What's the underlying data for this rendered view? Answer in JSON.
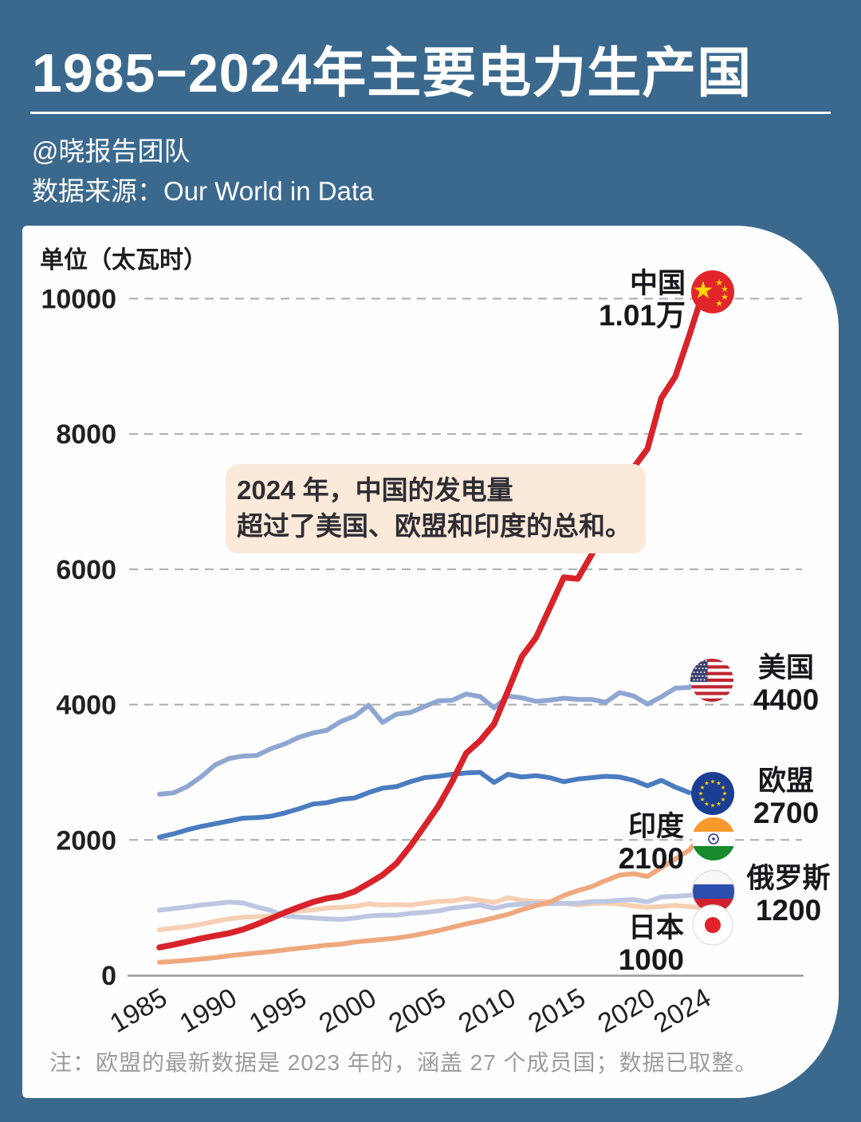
{
  "page": {
    "background": "#3b698e",
    "card_background": "#fefefe",
    "accent_red": "#d8232a"
  },
  "header": {
    "title": "1985−2024年主要电力生产国",
    "byline": "@晓报告团队",
    "source": "数据来源：Our World in Data"
  },
  "chart": {
    "unit_label": "单位（太瓦时）",
    "annotation": {
      "line1": "2024 年，中国的发电量",
      "line2": "超过了美国、欧盟和印度的总和。"
    },
    "note": "注：欧盟的最新数据是 2023 年的，涵盖 27 个成员国；数据已取整。"
  },
  "chart_data": {
    "type": "line",
    "title": "1985−2024年主要电力生产国",
    "unit": "太瓦时 (TWh)",
    "x_start": 1985,
    "x_end": 2024,
    "xticks": [
      1985,
      1990,
      1995,
      2000,
      2005,
      2010,
      2015,
      2020,
      2024
    ],
    "yticks": [
      0,
      2000,
      4000,
      6000,
      8000,
      10000
    ],
    "ylim": [
      0,
      10500
    ],
    "grid": "horizontal-dashed",
    "legend_position": "end-of-line-flags",
    "series": [
      {
        "name": "日本",
        "flag": "japan-flag-icon",
        "color": "#f6cfb4",
        "width": 6,
        "end_year": 2024,
        "end_label": "1000",
        "values": [
          672,
          696,
          719,
          753,
          798,
          835,
          857,
          866,
          876,
          922,
          950,
          965,
          995,
          1003,
          1018,
          1055,
          1038,
          1044,
          1038,
          1067,
          1092,
          1100,
          1136,
          1108,
          1075,
          1148,
          1107,
          1093,
          1090,
          1061,
          1041,
          1058,
          1068,
          1051,
          1025,
          1004,
          1017,
          1034,
          1013,
          1000
        ]
      },
      {
        "name": "俄罗斯",
        "flag": "russia-flag-icon",
        "color": "#bdc7e3",
        "width": 6,
        "end_year": 2024,
        "end_label": "1200",
        "values": [
          962,
          985,
          1010,
          1040,
          1060,
          1082,
          1068,
          1008,
          957,
          876,
          860,
          847,
          834,
          826,
          845,
          876,
          889,
          889,
          914,
          930,
          951,
          993,
          1013,
          1038,
          990,
          1036,
          1052,
          1064,
          1057,
          1062,
          1063,
          1089,
          1091,
          1109,
          1118,
          1085,
          1157,
          1167,
          1180,
          1200
        ]
      },
      {
        "name": "印度",
        "flag": "india-flag-icon",
        "color": "#efa87d",
        "width": 6,
        "end_year": 2024,
        "end_label": "2100",
        "values": [
          192,
          205,
          220,
          240,
          260,
          289,
          310,
          330,
          350,
          375,
          400,
          420,
          445,
          460,
          490,
          512,
          530,
          550,
          580,
          620,
          660,
          710,
          760,
          800,
          850,
          900,
          970,
          1030,
          1080,
          1180,
          1250,
          1310,
          1400,
          1480,
          1500,
          1460,
          1590,
          1720,
          1850,
          2100
        ]
      },
      {
        "name": "欧盟",
        "flag": "eu-flag-icon",
        "color": "#4b7cc0",
        "width": 6,
        "end_year": 2023,
        "end_label": "2700",
        "values": [
          2041,
          2090,
          2150,
          2200,
          2240,
          2280,
          2322,
          2330,
          2350,
          2400,
          2460,
          2530,
          2550,
          2600,
          2620,
          2700,
          2765,
          2788,
          2862,
          2920,
          2940,
          2970,
          2990,
          3000,
          2850,
          2970,
          2930,
          2950,
          2920,
          2860,
          2900,
          2920,
          2940,
          2930,
          2880,
          2800,
          2880,
          2780,
          2700
        ]
      },
      {
        "name": "美国",
        "flag": "us-flag-icon",
        "color": "#8fa6d2",
        "width": 6,
        "end_year": 2024,
        "end_label": "4400",
        "values": [
          2675,
          2695,
          2790,
          2935,
          3110,
          3203,
          3240,
          3250,
          3350,
          3420,
          3517,
          3580,
          3620,
          3750,
          3830,
          3990,
          3737,
          3858,
          3883,
          3970,
          4055,
          4065,
          4157,
          4119,
          3950,
          4125,
          4100,
          4048,
          4066,
          4094,
          4078,
          4077,
          4034,
          4178,
          4128,
          4007,
          4116,
          4243,
          4254,
          4400
        ]
      },
      {
        "name": "中国",
        "flag": "china-flag-icon",
        "color": "#d8232a",
        "width": 7.5,
        "end_year": 2024,
        "end_label": "1.01万",
        "values": [
          411,
          451,
          497,
          545,
          585,
          621,
          678,
          754,
          839,
          928,
          1008,
          1081,
          1136,
          1167,
          1239,
          1356,
          1481,
          1654,
          1911,
          2203,
          2500,
          2866,
          3282,
          3467,
          3715,
          4207,
          4713,
          4988,
          5432,
          5880,
          5860,
          6218,
          6604,
          7166,
          7503,
          7779,
          8534,
          8849,
          9456,
          10100
        ]
      }
    ]
  }
}
